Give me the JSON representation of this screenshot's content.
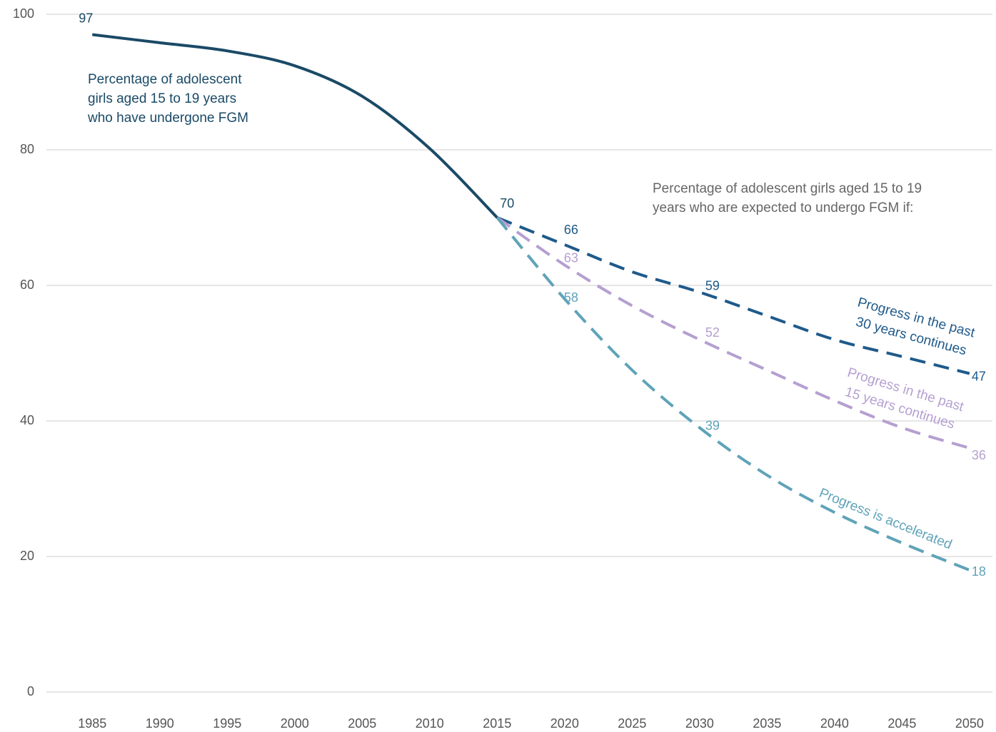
{
  "chart_data": {
    "type": "line",
    "x": [
      1985,
      1990,
      1995,
      2000,
      2005,
      2010,
      2015,
      2020,
      2025,
      2030,
      2035,
      2040,
      2045,
      2050
    ],
    "xlim": [
      1981.6,
      2051.7
    ],
    "xticks": [
      1985,
      1990,
      1995,
      2000,
      2005,
      2010,
      2015,
      2020,
      2025,
      2030,
      2035,
      2040,
      2045,
      2050
    ],
    "ylim": [
      0,
      100
    ],
    "yticks": [
      0,
      20,
      40,
      60,
      80,
      100
    ],
    "grid": true,
    "series": [
      {
        "name": "Percentage of adolescent girls aged 15 to 19 years who have undergone FGM",
        "color": "#1a4a66",
        "dashed": false,
        "values": [
          97,
          95.8,
          94.6,
          92.4,
          87.9,
          80.2,
          70,
          null,
          null,
          null,
          null,
          null,
          null,
          null
        ],
        "value_labels": [
          "97",
          null,
          null,
          null,
          null,
          null,
          "70",
          null,
          null,
          null,
          null,
          null,
          null,
          null
        ]
      },
      {
        "name": "Progress in the past 30 years continues",
        "color": "#1f5a8a",
        "dashed": true,
        "values": [
          null,
          null,
          null,
          null,
          null,
          null,
          70,
          66,
          62,
          59,
          55.5,
          52,
          49.5,
          47
        ],
        "value_labels": [
          null,
          null,
          null,
          null,
          null,
          null,
          null,
          "66",
          null,
          "59",
          null,
          null,
          null,
          "47"
        ]
      },
      {
        "name": "Progress in the past 15 years continues",
        "color": "#b59fd0",
        "dashed": true,
        "values": [
          null,
          null,
          null,
          null,
          null,
          null,
          70,
          63,
          57,
          52,
          47.5,
          43,
          39,
          36
        ],
        "value_labels": [
          null,
          null,
          null,
          null,
          null,
          null,
          null,
          "63",
          null,
          "52",
          null,
          null,
          null,
          "36"
        ]
      },
      {
        "name": "Progress is accelerated",
        "color": "#5fa3b8",
        "dashed": true,
        "values": [
          null,
          null,
          null,
          null,
          null,
          null,
          70,
          58,
          47.5,
          39,
          32,
          26.5,
          22,
          18
        ],
        "value_labels": [
          null,
          null,
          null,
          null,
          null,
          null,
          null,
          "58",
          null,
          "39",
          null,
          null,
          null,
          "18"
        ]
      }
    ],
    "annotations": [
      {
        "lines": [
          "Percentage of adolescent",
          "girls aged 15 to 19 years",
          "who have undergone FGM"
        ],
        "color": "#1a4a66"
      },
      {
        "lines": [
          "Percentage of adolescent girls aged 15 to 19",
          "years who are expected to undergo FGM if:"
        ],
        "color": "#666666"
      },
      {
        "lines": [
          "Progress in the past",
          "30 years continues"
        ],
        "color": "#1f5a8a"
      },
      {
        "lines": [
          "Progress in the past",
          "15 years continues"
        ],
        "color": "#b59fd0"
      },
      {
        "lines": [
          "Progress is accelerated"
        ],
        "color": "#5fa3b8"
      }
    ]
  }
}
